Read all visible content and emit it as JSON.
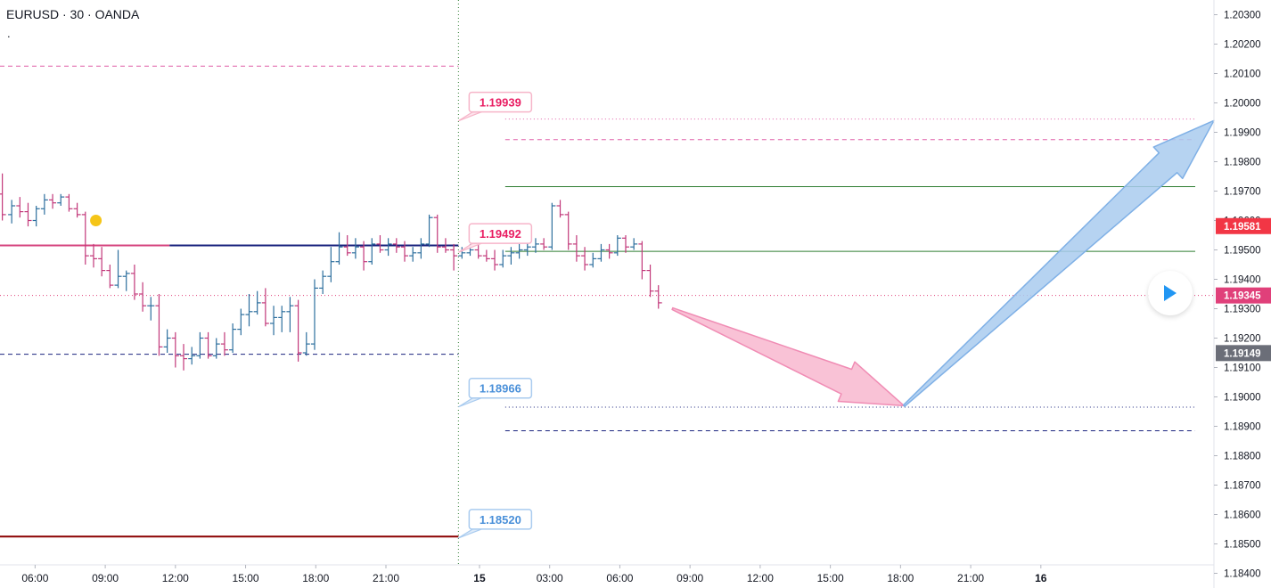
{
  "header": {
    "symbol_line": "EURUSD · 30 · OANDA",
    "sub_mark": "."
  },
  "colors": {
    "up": "#2d6f9e",
    "down": "#c2387a",
    "pink_dash": "#e060a8",
    "navy": "#1a237e",
    "dark_red": "#8b0000",
    "green": "#2e7d32",
    "pink_label": "#e91e63",
    "blue_label": "#4a90d9",
    "price_last": "#f23645",
    "price_dotted": "#e0407a",
    "price_grey": "#6b6e78",
    "pink_arrow": "#f8b7cf",
    "blue_arrow": "#a9cbef"
  },
  "controls": {
    "play_icon": "play-icon"
  },
  "chart_data": {
    "type": "ohlc",
    "symbol": "EURUSD",
    "interval": "30",
    "source": "OANDA",
    "ylim": [
      1.1835,
      1.2035
    ],
    "y_ticks": [
      "1.20300",
      "1.20200",
      "1.20100",
      "1.20000",
      "1.19900",
      "1.19800",
      "1.19700",
      "1.19600",
      "1.19500",
      "1.19400",
      "1.19300",
      "1.19200",
      "1.19100",
      "1.19000",
      "1.18900",
      "1.18800",
      "1.18700",
      "1.18600",
      "1.18500",
      "1.18400"
    ],
    "x_ticks": [
      {
        "t": 0,
        "label": "06:00"
      },
      {
        "t": 6,
        "label": "09:00"
      },
      {
        "t": 12,
        "label": "12:00"
      },
      {
        "t": 18,
        "label": "15:00"
      },
      {
        "t": 24,
        "label": "18:00"
      },
      {
        "t": 30,
        "label": "21:00"
      },
      {
        "t": 38,
        "label": "15"
      },
      {
        "t": 44,
        "label": "03:00"
      },
      {
        "t": 50,
        "label": "06:00"
      },
      {
        "t": 56,
        "label": "09:00"
      },
      {
        "t": 62,
        "label": "12:00"
      },
      {
        "t": 68,
        "label": "15:00"
      },
      {
        "t": 74,
        "label": "18:00"
      },
      {
        "t": 80,
        "label": "21:00"
      },
      {
        "t": 86,
        "label": "16"
      }
    ],
    "x_range": [
      -3,
      100.8
    ],
    "session_divider_t": 36.2,
    "bars": [
      {
        "t": -2.8,
        "o": 1.1969,
        "h": 1.1976,
        "l": 1.196,
        "c": 1.1962
      },
      {
        "t": -2.0,
        "o": 1.1962,
        "h": 1.1967,
        "l": 1.1959,
        "c": 1.1965
      },
      {
        "t": -1.3,
        "o": 1.1965,
        "h": 1.1968,
        "l": 1.1961,
        "c": 1.1963
      },
      {
        "t": -0.6,
        "o": 1.1963,
        "h": 1.1966,
        "l": 1.1958,
        "c": 1.196
      },
      {
        "t": 0.1,
        "o": 1.196,
        "h": 1.1965,
        "l": 1.1958,
        "c": 1.1964
      },
      {
        "t": 0.8,
        "o": 1.1964,
        "h": 1.1969,
        "l": 1.1962,
        "c": 1.1967
      },
      {
        "t": 1.5,
        "o": 1.1967,
        "h": 1.1969,
        "l": 1.1964,
        "c": 1.1966
      },
      {
        "t": 2.2,
        "o": 1.1966,
        "h": 1.1969,
        "l": 1.1965,
        "c": 1.1968
      },
      {
        "t": 2.9,
        "o": 1.1968,
        "h": 1.1969,
        "l": 1.1963,
        "c": 1.1964
      },
      {
        "t": 3.6,
        "o": 1.1964,
        "h": 1.1966,
        "l": 1.1961,
        "c": 1.1962
      },
      {
        "t": 4.3,
        "o": 1.1962,
        "h": 1.1963,
        "l": 1.1945,
        "c": 1.1948
      },
      {
        "t": 5.0,
        "o": 1.1948,
        "h": 1.1952,
        "l": 1.1944,
        "c": 1.1947
      },
      {
        "t": 5.7,
        "o": 1.1947,
        "h": 1.1951,
        "l": 1.1941,
        "c": 1.1943
      },
      {
        "t": 6.4,
        "o": 1.1943,
        "h": 1.1945,
        "l": 1.1937,
        "c": 1.1938
      },
      {
        "t": 7.1,
        "o": 1.1938,
        "h": 1.195,
        "l": 1.1937,
        "c": 1.1941
      },
      {
        "t": 7.8,
        "o": 1.1941,
        "h": 1.1943,
        "l": 1.1936,
        "c": 1.1942
      },
      {
        "t": 8.5,
        "o": 1.1942,
        "h": 1.1945,
        "l": 1.1933,
        "c": 1.1935
      },
      {
        "t": 9.2,
        "o": 1.1935,
        "h": 1.1939,
        "l": 1.1929,
        "c": 1.1931
      },
      {
        "t": 9.9,
        "o": 1.1931,
        "h": 1.1934,
        "l": 1.1926,
        "c": 1.1931
      },
      {
        "t": 10.6,
        "o": 1.1931,
        "h": 1.1935,
        "l": 1.1914,
        "c": 1.1917
      },
      {
        "t": 11.3,
        "o": 1.1917,
        "h": 1.1923,
        "l": 1.1915,
        "c": 1.192
      },
      {
        "t": 12.0,
        "o": 1.192,
        "h": 1.1922,
        "l": 1.191,
        "c": 1.1914
      },
      {
        "t": 12.7,
        "o": 1.1914,
        "h": 1.1918,
        "l": 1.1909,
        "c": 1.1913
      },
      {
        "t": 13.4,
        "o": 1.1913,
        "h": 1.1917,
        "l": 1.1911,
        "c": 1.1914
      },
      {
        "t": 14.1,
        "o": 1.1914,
        "h": 1.1922,
        "l": 1.1913,
        "c": 1.192
      },
      {
        "t": 14.8,
        "o": 1.192,
        "h": 1.1922,
        "l": 1.1913,
        "c": 1.1914
      },
      {
        "t": 15.5,
        "o": 1.1914,
        "h": 1.192,
        "l": 1.1913,
        "c": 1.1918
      },
      {
        "t": 16.2,
        "o": 1.1918,
        "h": 1.1922,
        "l": 1.1914,
        "c": 1.1916
      },
      {
        "t": 16.9,
        "o": 1.1916,
        "h": 1.1925,
        "l": 1.1915,
        "c": 1.1923
      },
      {
        "t": 17.6,
        "o": 1.1923,
        "h": 1.193,
        "l": 1.1921,
        "c": 1.1928
      },
      {
        "t": 18.3,
        "o": 1.1928,
        "h": 1.1935,
        "l": 1.1924,
        "c": 1.1929
      },
      {
        "t": 19.0,
        "o": 1.1929,
        "h": 1.1936,
        "l": 1.1928,
        "c": 1.1932
      },
      {
        "t": 19.7,
        "o": 1.1932,
        "h": 1.1937,
        "l": 1.1924,
        "c": 1.1925
      },
      {
        "t": 20.4,
        "o": 1.1925,
        "h": 1.1931,
        "l": 1.1921,
        "c": 1.1927
      },
      {
        "t": 21.1,
        "o": 1.1927,
        "h": 1.1931,
        "l": 1.1922,
        "c": 1.1929
      },
      {
        "t": 21.8,
        "o": 1.1929,
        "h": 1.1934,
        "l": 1.1922,
        "c": 1.1931
      },
      {
        "t": 22.5,
        "o": 1.1931,
        "h": 1.1933,
        "l": 1.1912,
        "c": 1.1915
      },
      {
        "t": 23.2,
        "o": 1.1915,
        "h": 1.1922,
        "l": 1.1914,
        "c": 1.1918
      },
      {
        "t": 23.9,
        "o": 1.1918,
        "h": 1.194,
        "l": 1.1916,
        "c": 1.1937
      },
      {
        "t": 24.6,
        "o": 1.1937,
        "h": 1.1943,
        "l": 1.1935,
        "c": 1.1941
      },
      {
        "t": 25.3,
        "o": 1.1941,
        "h": 1.1951,
        "l": 1.1939,
        "c": 1.1946
      },
      {
        "t": 26.0,
        "o": 1.1946,
        "h": 1.1956,
        "l": 1.1945,
        "c": 1.1951
      },
      {
        "t": 26.7,
        "o": 1.1951,
        "h": 1.1955,
        "l": 1.1948,
        "c": 1.1949
      },
      {
        "t": 27.4,
        "o": 1.1949,
        "h": 1.1954,
        "l": 1.1947,
        "c": 1.1951
      },
      {
        "t": 28.1,
        "o": 1.1951,
        "h": 1.1953,
        "l": 1.1943,
        "c": 1.1946
      },
      {
        "t": 28.8,
        "o": 1.1946,
        "h": 1.1954,
        "l": 1.1945,
        "c": 1.1952
      },
      {
        "t": 29.5,
        "o": 1.1952,
        "h": 1.1955,
        "l": 1.1949,
        "c": 1.195
      },
      {
        "t": 30.2,
        "o": 1.195,
        "h": 1.1954,
        "l": 1.1948,
        "c": 1.1952
      },
      {
        "t": 30.9,
        "o": 1.1952,
        "h": 1.1954,
        "l": 1.1949,
        "c": 1.1951
      },
      {
        "t": 31.6,
        "o": 1.1951,
        "h": 1.1953,
        "l": 1.1946,
        "c": 1.1948
      },
      {
        "t": 32.3,
        "o": 1.1948,
        "h": 1.1951,
        "l": 1.1946,
        "c": 1.1949
      },
      {
        "t": 33.0,
        "o": 1.1949,
        "h": 1.1954,
        "l": 1.1947,
        "c": 1.1952
      },
      {
        "t": 33.7,
        "o": 1.1952,
        "h": 1.1962,
        "l": 1.1951,
        "c": 1.1961
      },
      {
        "t": 34.4,
        "o": 1.1961,
        "h": 1.1962,
        "l": 1.1949,
        "c": 1.1951
      },
      {
        "t": 35.1,
        "o": 1.1951,
        "h": 1.1954,
        "l": 1.1949,
        "c": 1.195
      },
      {
        "t": 35.8,
        "o": 1.195,
        "h": 1.1952,
        "l": 1.1943,
        "c": 1.1948
      },
      {
        "t": 36.5,
        "o": 1.1948,
        "h": 1.1951,
        "l": 1.1947,
        "c": 1.1949
      },
      {
        "t": 37.2,
        "o": 1.1949,
        "h": 1.1952,
        "l": 1.1948,
        "c": 1.195
      },
      {
        "t": 37.9,
        "o": 1.195,
        "h": 1.1953,
        "l": 1.1947,
        "c": 1.1948
      },
      {
        "t": 38.6,
        "o": 1.1948,
        "h": 1.195,
        "l": 1.1946,
        "c": 1.1947
      },
      {
        "t": 39.3,
        "o": 1.1947,
        "h": 1.195,
        "l": 1.1943,
        "c": 1.1945
      },
      {
        "t": 40.0,
        "o": 1.1945,
        "h": 1.195,
        "l": 1.1944,
        "c": 1.1948
      },
      {
        "t": 40.7,
        "o": 1.1948,
        "h": 1.1951,
        "l": 1.1945,
        "c": 1.1949
      },
      {
        "t": 41.4,
        "o": 1.1949,
        "h": 1.1952,
        "l": 1.1947,
        "c": 1.195
      },
      {
        "t": 42.1,
        "o": 1.195,
        "h": 1.1954,
        "l": 1.1948,
        "c": 1.1951
      },
      {
        "t": 42.8,
        "o": 1.1951,
        "h": 1.1954,
        "l": 1.1949,
        "c": 1.1952
      },
      {
        "t": 43.5,
        "o": 1.1952,
        "h": 1.1954,
        "l": 1.195,
        "c": 1.1951
      },
      {
        "t": 44.2,
        "o": 1.1951,
        "h": 1.1966,
        "l": 1.195,
        "c": 1.1965
      },
      {
        "t": 44.9,
        "o": 1.1965,
        "h": 1.1967,
        "l": 1.1961,
        "c": 1.1962
      },
      {
        "t": 45.6,
        "o": 1.1962,
        "h": 1.1963,
        "l": 1.195,
        "c": 1.1952
      },
      {
        "t": 46.3,
        "o": 1.1952,
        "h": 1.1955,
        "l": 1.1946,
        "c": 1.1948
      },
      {
        "t": 47.0,
        "o": 1.1948,
        "h": 1.1951,
        "l": 1.1943,
        "c": 1.1945
      },
      {
        "t": 47.7,
        "o": 1.1945,
        "h": 1.1949,
        "l": 1.1944,
        "c": 1.1947
      },
      {
        "t": 48.4,
        "o": 1.1947,
        "h": 1.1952,
        "l": 1.1946,
        "c": 1.195
      },
      {
        "t": 49.1,
        "o": 1.195,
        "h": 1.1952,
        "l": 1.1947,
        "c": 1.1949
      },
      {
        "t": 49.8,
        "o": 1.1949,
        "h": 1.1955,
        "l": 1.1948,
        "c": 1.1954
      },
      {
        "t": 50.5,
        "o": 1.1954,
        "h": 1.1955,
        "l": 1.1949,
        "c": 1.1951
      },
      {
        "t": 51.2,
        "o": 1.1951,
        "h": 1.1954,
        "l": 1.195,
        "c": 1.1952
      },
      {
        "t": 51.9,
        "o": 1.1952,
        "h": 1.1953,
        "l": 1.194,
        "c": 1.1943
      },
      {
        "t": 52.6,
        "o": 1.1943,
        "h": 1.1945,
        "l": 1.1934,
        "c": 1.1936
      },
      {
        "t": 53.3,
        "o": 1.1936,
        "h": 1.1938,
        "l": 1.193,
        "c": 1.1932
      }
    ],
    "horizontal_lines": [
      {
        "name": "top-pink-dash",
        "price": 1.20125,
        "x0": -3,
        "x1": 36.2,
        "style": "dash",
        "color": "#e060a8",
        "width": 1
      },
      {
        "name": "thick-pink",
        "price": 1.19515,
        "x0": -3,
        "x1": 11.5,
        "style": "solid",
        "color": "#d6457f",
        "width": 2
      },
      {
        "name": "thick-navy",
        "price": 1.19515,
        "x0": 11.5,
        "x1": 36.2,
        "style": "solid",
        "color": "#1a237e",
        "width": 2
      },
      {
        "name": "dotted-current",
        "price": 1.19345,
        "x0": -3,
        "x1": 100.8,
        "style": "dot",
        "color": "#e0407a",
        "width": 1
      },
      {
        "name": "left-navy-dash",
        "price": 1.19145,
        "x0": -3,
        "x1": 36.2,
        "style": "dash",
        "color": "#1a237e",
        "width": 1
      },
      {
        "name": "dark-red",
        "price": 1.18525,
        "x0": -3,
        "x1": 36.2,
        "style": "solid",
        "color": "#8b0000",
        "width": 2
      },
      {
        "name": "right-pink-dot",
        "price": 1.19945,
        "x0": 40.2,
        "x1": 99.2,
        "style": "dot",
        "color": "#e060a8",
        "width": 1
      },
      {
        "name": "right-pink-dash",
        "price": 1.19875,
        "x0": 40.2,
        "x1": 99.2,
        "style": "dash",
        "color": "#e060a8",
        "width": 1
      },
      {
        "name": "green-upper",
        "price": 1.19715,
        "x0": 40.2,
        "x1": 99.2,
        "style": "solid",
        "color": "#2e7d32",
        "width": 1
      },
      {
        "name": "green-lower",
        "price": 1.19495,
        "x0": 40.2,
        "x1": 99.2,
        "style": "solid",
        "color": "#2e7d32",
        "width": 1
      },
      {
        "name": "right-blue-dot",
        "price": 1.18965,
        "x0": 40.2,
        "x1": 99.2,
        "style": "dot",
        "color": "#1a237e",
        "width": 1
      },
      {
        "name": "right-navy-dash",
        "price": 1.18885,
        "x0": 40.2,
        "x1": 99.2,
        "style": "dash",
        "color": "#1a237e",
        "width": 1
      }
    ],
    "callouts": [
      {
        "label": "1.19939",
        "price": 1.19939,
        "tone": "pink"
      },
      {
        "label": "1.19492",
        "price": 1.19492,
        "tone": "pink"
      },
      {
        "label": "1.18966",
        "price": 1.18966,
        "tone": "blue"
      },
      {
        "label": "1.18520",
        "price": 1.1852,
        "tone": "blue"
      }
    ],
    "price_badges": [
      {
        "label": "1.19581",
        "price": 1.19581,
        "color": "#f23645"
      },
      {
        "label": "1.19345",
        "price": 1.19345,
        "color": "#e0407a"
      },
      {
        "label": "1.19149",
        "price": 1.19149,
        "color": "#6b6e78"
      }
    ],
    "marker": {
      "t": 5.2,
      "price": 1.196,
      "color": "#f5c518"
    },
    "arrows": [
      {
        "name": "down-projection",
        "tone": "pink",
        "from": {
          "t": 54.5,
          "price": 1.193
        },
        "to": {
          "t": 74.3,
          "price": 1.1897
        }
      },
      {
        "name": "up-projection",
        "tone": "blue",
        "from": {
          "t": 74.3,
          "price": 1.1897
        },
        "to": {
          "t": 100.8,
          "price": 1.1994
        }
      }
    ]
  }
}
